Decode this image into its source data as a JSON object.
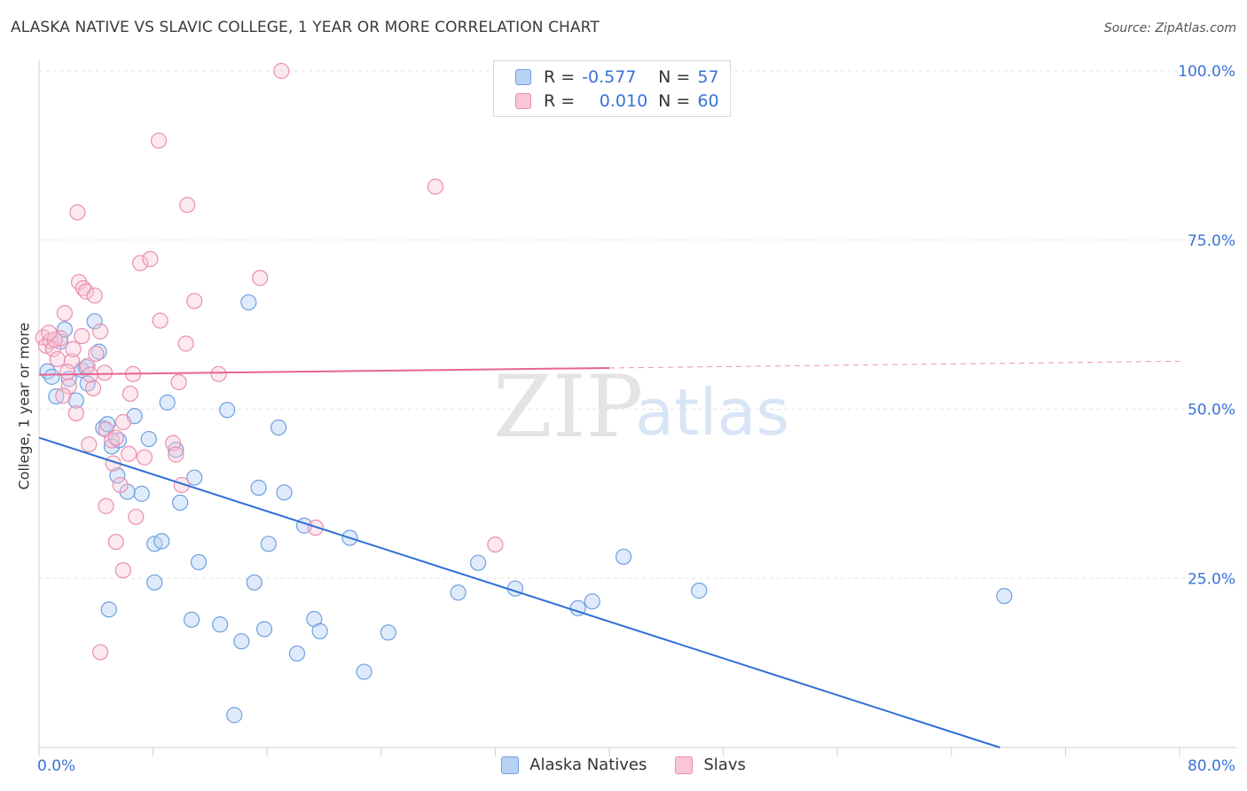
{
  "header": {
    "title": "ALASKA NATIVE VS SLAVIC COLLEGE, 1 YEAR OR MORE CORRELATION CHART",
    "source": "Source: ZipAtlas.com"
  },
  "legend": {
    "blue": {
      "r_label": "R =",
      "r_value": "-0.577",
      "n_label": "N =",
      "n_value": "57"
    },
    "pink": {
      "r_label": "R =",
      "r_value": "0.010",
      "n_label": "N =",
      "n_value": "60"
    }
  },
  "watermark": {
    "zip": "ZIP",
    "atlas": "atlas"
  },
  "colors": {
    "blue": "#6f9fe0",
    "blue_line": "#2f6fd6",
    "pink": "#ea8faf",
    "pink_line": "#e8648f",
    "axis_text": "#3a72d6"
  },
  "chart_data": {
    "type": "scatter",
    "title": "ALASKA NATIVE VS SLAVIC COLLEGE, 1 YEAR OR MORE CORRELATION CHART",
    "xlabel": "",
    "ylabel": "College, 1 year or more",
    "xlim": [
      0,
      80
    ],
    "ylim": [
      0,
      100
    ],
    "x_tick_labels": [
      "0.0%",
      "80.0%"
    ],
    "y_tick_labels": [
      "100.0%",
      "75.0%",
      "50.0%",
      "25.0%"
    ],
    "y_ticks": [
      100,
      75,
      50,
      25
    ],
    "grid": true,
    "legend_position": "top-center",
    "series": [
      {
        "name": "Alaska Natives",
        "color": "#6f9fe0",
        "points": [
          [
            0.6,
            55.6
          ],
          [
            0.9,
            54.8
          ],
          [
            1.2,
            51.9
          ],
          [
            1.5,
            60.0
          ],
          [
            1.8,
            61.8
          ],
          [
            2.1,
            54.5
          ],
          [
            2.6,
            51.3
          ],
          [
            3.0,
            55.8
          ],
          [
            3.3,
            56.2
          ],
          [
            3.9,
            63.0
          ],
          [
            4.2,
            58.5
          ],
          [
            4.5,
            47.2
          ],
          [
            4.8,
            47.8
          ],
          [
            5.1,
            44.5
          ],
          [
            5.5,
            40.2
          ],
          [
            5.6,
            45.4
          ],
          [
            6.2,
            37.8
          ],
          [
            6.7,
            49.0
          ],
          [
            7.2,
            37.5
          ],
          [
            7.7,
            45.6
          ],
          [
            8.1,
            24.4
          ],
          [
            8.1,
            30.1
          ],
          [
            8.6,
            30.5
          ],
          [
            9.0,
            51.0
          ],
          [
            9.6,
            44.0
          ],
          [
            9.9,
            36.2
          ],
          [
            10.7,
            18.9
          ],
          [
            10.9,
            39.9
          ],
          [
            11.2,
            27.4
          ],
          [
            4.9,
            20.4
          ],
          [
            12.7,
            18.2
          ],
          [
            13.2,
            49.9
          ],
          [
            13.7,
            4.8
          ],
          [
            14.2,
            15.7
          ],
          [
            14.7,
            65.8
          ],
          [
            15.1,
            24.4
          ],
          [
            15.4,
            38.4
          ],
          [
            15.8,
            17.5
          ],
          [
            16.1,
            30.1
          ],
          [
            16.8,
            47.3
          ],
          [
            17.2,
            37.7
          ],
          [
            18.1,
            13.9
          ],
          [
            18.6,
            32.8
          ],
          [
            19.3,
            19.0
          ],
          [
            19.7,
            17.2
          ],
          [
            21.8,
            31.0
          ],
          [
            22.8,
            11.2
          ],
          [
            24.5,
            17.0
          ],
          [
            29.4,
            22.9
          ],
          [
            30.8,
            27.3
          ],
          [
            33.4,
            23.5
          ],
          [
            37.8,
            20.6
          ],
          [
            38.8,
            21.6
          ],
          [
            41.0,
            28.2
          ],
          [
            46.3,
            23.2
          ],
          [
            67.7,
            22.4
          ],
          [
            3.4,
            53.8
          ]
        ]
      },
      {
        "name": "Slavs",
        "color": "#ea8faf",
        "points": [
          [
            0.3,
            60.6
          ],
          [
            0.5,
            59.4
          ],
          [
            0.8,
            60.1
          ],
          [
            1.0,
            58.9
          ],
          [
            1.3,
            57.4
          ],
          [
            1.5,
            60.5
          ],
          [
            1.8,
            64.2
          ],
          [
            2.1,
            53.4
          ],
          [
            2.3,
            57.1
          ],
          [
            2.6,
            49.4
          ],
          [
            2.8,
            68.8
          ],
          [
            2.7,
            79.1
          ],
          [
            3.1,
            67.9
          ],
          [
            3.3,
            67.4
          ],
          [
            3.4,
            56.4
          ],
          [
            3.6,
            55.1
          ],
          [
            3.9,
            66.8
          ],
          [
            3.8,
            53.1
          ],
          [
            4.0,
            58.2
          ],
          [
            4.3,
            61.5
          ],
          [
            4.7,
            47.0
          ],
          [
            4.6,
            55.4
          ],
          [
            5.1,
            45.4
          ],
          [
            5.2,
            42.0
          ],
          [
            5.4,
            45.8
          ],
          [
            5.7,
            38.8
          ],
          [
            5.9,
            48.1
          ],
          [
            6.3,
            43.4
          ],
          [
            6.6,
            55.2
          ],
          [
            6.8,
            34.1
          ],
          [
            7.1,
            71.6
          ],
          [
            7.4,
            42.9
          ],
          [
            7.8,
            72.2
          ],
          [
            8.4,
            89.7
          ],
          [
            8.5,
            63.1
          ],
          [
            9.4,
            45.0
          ],
          [
            9.6,
            43.3
          ],
          [
            9.8,
            54.0
          ],
          [
            10.0,
            38.8
          ],
          [
            10.3,
            59.7
          ],
          [
            10.4,
            80.2
          ],
          [
            10.9,
            66.0
          ],
          [
            12.6,
            55.2
          ],
          [
            15.5,
            69.4
          ],
          [
            17.0,
            100.0
          ],
          [
            19.4,
            32.5
          ],
          [
            27.8,
            82.9
          ],
          [
            32.0,
            30.0
          ],
          [
            4.3,
            14.1
          ],
          [
            5.9,
            26.2
          ],
          [
            5.4,
            30.4
          ],
          [
            3.0,
            60.8
          ],
          [
            1.7,
            52.0
          ],
          [
            2.4,
            58.9
          ],
          [
            6.4,
            52.3
          ],
          [
            4.7,
            35.7
          ],
          [
            1.1,
            60.3
          ],
          [
            3.5,
            44.8
          ],
          [
            2.0,
            55.5
          ],
          [
            0.7,
            61.3
          ]
        ]
      }
    ],
    "trendlines": [
      {
        "series": "Alaska Natives",
        "x": [
          0,
          67.4
        ],
        "y": [
          45.8,
          0
        ]
      },
      {
        "series": "Slavs",
        "x": [
          0,
          80
        ],
        "y": [
          55.1,
          57.1
        ],
        "solid_until_x": 40
      }
    ]
  },
  "bottom_legend": [
    "Alaska Natives",
    "Slavs"
  ]
}
